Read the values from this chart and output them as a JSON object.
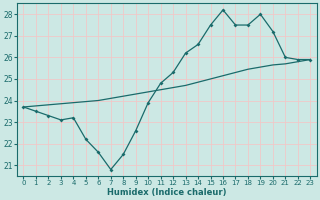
{
  "xlabel": "Humidex (Indice chaleur)",
  "bg_color": "#cce8e4",
  "grid_color": "#f0c8c8",
  "line_color": "#1a6b6b",
  "xlim": [
    -0.5,
    23.5
  ],
  "ylim": [
    20.5,
    28.5
  ],
  "yticks": [
    21,
    22,
    23,
    24,
    25,
    26,
    27,
    28
  ],
  "xticks": [
    0,
    1,
    2,
    3,
    4,
    5,
    6,
    7,
    8,
    9,
    10,
    11,
    12,
    13,
    14,
    15,
    16,
    17,
    18,
    19,
    20,
    21,
    22,
    23
  ],
  "line1_x": [
    0,
    1,
    2,
    3,
    4,
    5,
    6,
    7,
    8,
    9,
    10,
    11,
    12,
    13,
    14,
    15,
    16,
    17,
    18,
    19,
    20,
    21,
    22,
    23
  ],
  "line1_y": [
    23.7,
    23.5,
    23.3,
    23.1,
    23.2,
    22.2,
    21.6,
    20.8,
    21.5,
    22.6,
    23.9,
    24.8,
    25.3,
    26.2,
    26.6,
    27.5,
    28.2,
    27.5,
    27.5,
    28.0,
    27.2,
    26.0,
    25.9,
    25.9
  ],
  "line2_x": [
    0,
    1,
    2,
    3,
    4,
    5,
    6,
    7,
    8,
    9,
    10,
    11,
    12,
    13,
    14,
    15,
    16,
    17,
    18,
    19,
    20,
    21,
    22,
    23
  ],
  "line2_y": [
    23.7,
    23.75,
    23.8,
    23.85,
    23.9,
    23.95,
    24.0,
    24.1,
    24.2,
    24.3,
    24.4,
    24.5,
    24.6,
    24.7,
    24.85,
    25.0,
    25.15,
    25.3,
    25.45,
    25.55,
    25.65,
    25.7,
    25.8,
    25.9
  ]
}
